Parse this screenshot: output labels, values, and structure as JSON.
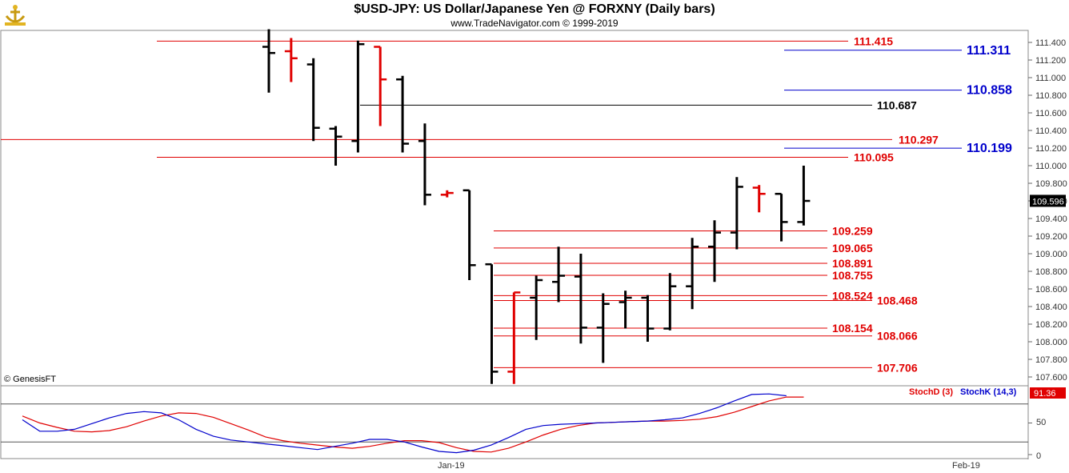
{
  "header": {
    "title": "$USD-JPY:  US Dollar/Japanese Yen @ FORXNY  (Daily bars)",
    "copyright": "www.TradeNavigator.com © 1999-2019",
    "logo_icon": "anchor-trophy-logo"
  },
  "watermark": "© GenesisFT",
  "colors": {
    "up": "#000000",
    "down": "#e00000",
    "blue": "#0000cc",
    "red": "#e00000"
  },
  "chart_data": [
    {
      "type": "ohlc",
      "ylim": [
        107.5,
        111.55
      ],
      "yticks": [
        "107.600",
        "107.800",
        "108.000",
        "108.200",
        "108.400",
        "108.600",
        "108.800",
        "109.000",
        "109.200",
        "109.400",
        "109.600",
        "109.800",
        "110.000",
        "110.200",
        "110.400",
        "110.600",
        "110.800",
        "111.000",
        "111.200",
        "111.400"
      ],
      "last_price": "109.596",
      "bars": [
        {
          "o": 111.35,
          "h": 111.55,
          "l": 110.83,
          "c": 111.28,
          "dir": "up"
        },
        {
          "o": 111.3,
          "h": 111.45,
          "l": 110.95,
          "c": 111.22,
          "dir": "down"
        },
        {
          "o": 111.15,
          "h": 111.22,
          "l": 110.28,
          "c": 110.43,
          "dir": "up"
        },
        {
          "o": 110.42,
          "h": 110.45,
          "l": 110.0,
          "c": 110.33,
          "dir": "up"
        },
        {
          "o": 110.28,
          "h": 111.42,
          "l": 110.15,
          "c": 111.38,
          "dir": "up"
        },
        {
          "o": 111.35,
          "h": 111.35,
          "l": 110.45,
          "c": 110.98,
          "dir": "down"
        },
        {
          "o": 110.98,
          "h": 111.02,
          "l": 110.15,
          "c": 110.25,
          "dir": "up"
        },
        {
          "o": 110.28,
          "h": 110.48,
          "l": 109.55,
          "c": 109.67,
          "dir": "up"
        },
        {
          "o": 109.67,
          "h": 109.72,
          "l": 109.64,
          "c": 109.69,
          "dir": "down"
        },
        {
          "o": 109.72,
          "h": 109.72,
          "l": 108.7,
          "c": 108.87,
          "dir": "up"
        },
        {
          "o": 108.88,
          "h": 108.88,
          "l": 107.52,
          "c": 107.66,
          "dir": "up"
        },
        {
          "o": 107.66,
          "h": 108.56,
          "l": 107.52,
          "c": 108.56,
          "dir": "down"
        },
        {
          "o": 108.5,
          "h": 108.75,
          "l": 108.02,
          "c": 108.7,
          "dir": "up"
        },
        {
          "o": 108.68,
          "h": 109.08,
          "l": 108.45,
          "c": 108.75,
          "dir": "up"
        },
        {
          "o": 108.74,
          "h": 109.0,
          "l": 107.98,
          "c": 108.16,
          "dir": "up"
        },
        {
          "o": 108.16,
          "h": 108.55,
          "l": 107.76,
          "c": 108.43,
          "dir": "up"
        },
        {
          "o": 108.45,
          "h": 108.58,
          "l": 108.15,
          "c": 108.5,
          "dir": "up"
        },
        {
          "o": 108.5,
          "h": 108.53,
          "l": 108.0,
          "c": 108.15,
          "dir": "up"
        },
        {
          "o": 108.15,
          "h": 108.78,
          "l": 108.13,
          "c": 108.63,
          "dir": "up"
        },
        {
          "o": 108.63,
          "h": 109.18,
          "l": 108.37,
          "c": 109.08,
          "dir": "up"
        },
        {
          "o": 109.08,
          "h": 109.38,
          "l": 108.68,
          "c": 109.24,
          "dir": "up"
        },
        {
          "o": 109.24,
          "h": 109.87,
          "l": 109.05,
          "c": 109.76,
          "dir": "up"
        },
        {
          "o": 109.75,
          "h": 109.78,
          "l": 109.47,
          "c": 109.68,
          "dir": "down"
        },
        {
          "o": 109.68,
          "h": 109.68,
          "l": 109.14,
          "c": 109.36,
          "dir": "up"
        },
        {
          "o": 109.36,
          "h": 110.0,
          "l": 109.32,
          "c": 109.6,
          "dir": "up"
        }
      ],
      "levels": [
        {
          "price": "111.415",
          "value": 111.415,
          "color": "red",
          "span": "full"
        },
        {
          "price": "111.311",
          "value": 111.311,
          "color": "blue",
          "span": "right"
        },
        {
          "price": "110.858",
          "value": 110.858,
          "color": "blue",
          "span": "right"
        },
        {
          "price": "110.687",
          "value": 110.687,
          "color": "black",
          "span": "mid"
        },
        {
          "price": "110.297",
          "value": 110.297,
          "color": "red",
          "span": "all"
        },
        {
          "price": "110.199",
          "value": 110.199,
          "color": "blue",
          "span": "right"
        },
        {
          "price": "110.095",
          "value": 110.095,
          "color": "red",
          "span": "full"
        },
        {
          "price": "109.259",
          "value": 109.259,
          "color": "red",
          "span": "low"
        },
        {
          "price": "109.065",
          "value": 109.065,
          "color": "red",
          "span": "low"
        },
        {
          "price": "108.891",
          "value": 108.891,
          "color": "red",
          "span": "low"
        },
        {
          "price": "108.755",
          "value": 108.755,
          "color": "red",
          "span": "low"
        },
        {
          "price": "108.524",
          "value": 108.524,
          "color": "red",
          "span": "low"
        },
        {
          "price": "108.468",
          "value": 108.468,
          "color": "red",
          "span": "low2"
        },
        {
          "price": "108.154",
          "value": 108.154,
          "color": "red",
          "span": "low"
        },
        {
          "price": "108.066",
          "value": 108.066,
          "color": "red",
          "span": "low2"
        },
        {
          "price": "107.706",
          "value": 107.706,
          "color": "red",
          "span": "low2"
        }
      ]
    },
    {
      "type": "line",
      "ylim": [
        0,
        100
      ],
      "yticks": [
        "0",
        "50"
      ],
      "x_labels": [
        "Jan-19",
        "Feb-19"
      ],
      "series": [
        {
          "name": "StochD (3)",
          "color": "red",
          "values": [
            61,
            50,
            43,
            37,
            36,
            38,
            44,
            53,
            61,
            66,
            65,
            59,
            49,
            39,
            28,
            22,
            18,
            15,
            12,
            10,
            13,
            18,
            22,
            22,
            19,
            11,
            5,
            4,
            10,
            20,
            31,
            40,
            46,
            50,
            51,
            52,
            53,
            53,
            54,
            56,
            60,
            67,
            76,
            85,
            91,
            91
          ]
        },
        {
          "name": "StochK (14,3)",
          "color": "blue",
          "values": [
            55,
            37,
            37,
            40,
            49,
            58,
            65,
            68,
            66,
            55,
            40,
            29,
            23,
            20,
            17,
            14,
            11,
            8,
            13,
            18,
            24,
            24,
            20,
            12,
            5,
            3,
            7,
            15,
            27,
            40,
            46,
            48,
            49,
            50,
            51,
            52,
            53,
            55,
            58,
            65,
            74,
            85,
            95,
            96,
            93
          ]
        }
      ],
      "last_value": "91.36"
    }
  ]
}
